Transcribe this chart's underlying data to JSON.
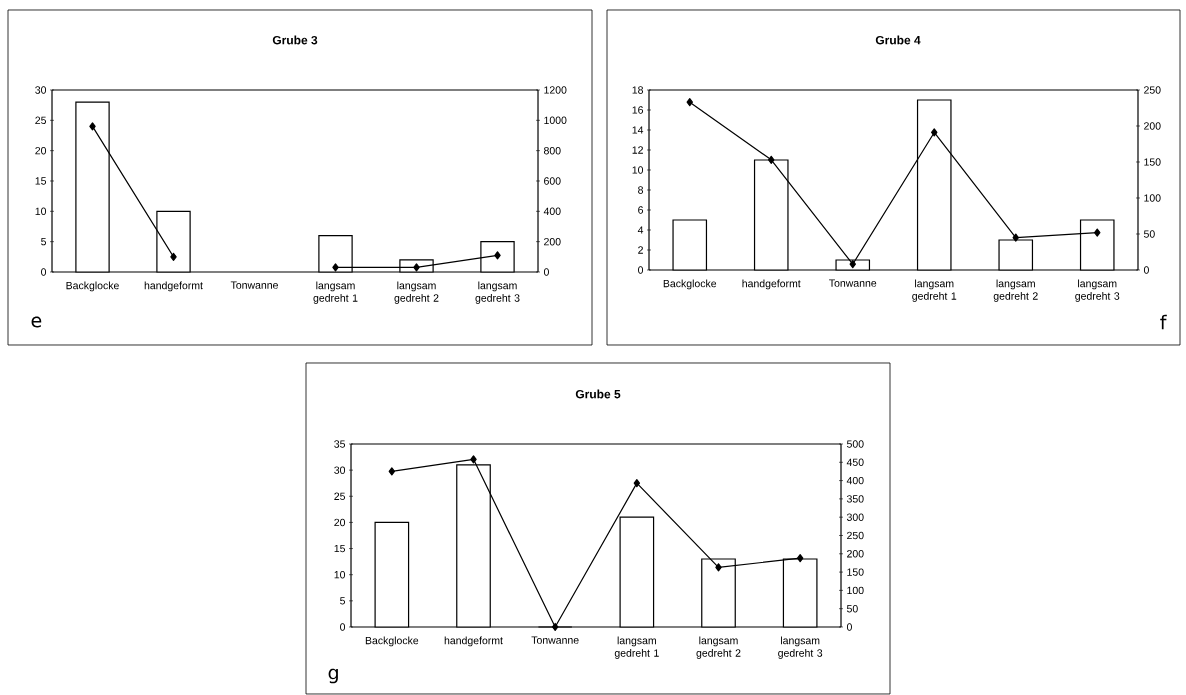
{
  "chart_data": [
    {
      "type": "bar",
      "title": "Grube 3",
      "categories": [
        "Backglocke",
        "handgeformt",
        "Tonwanne",
        "langsam gedreht 1",
        "langsam gedreht 2",
        "langsam gedreht 3"
      ],
      "series": [
        {
          "color": "#ffffff",
          "values": [
            28,
            10,
            null,
            6,
            2,
            5
          ]
        },
        {
          "type": "line",
          "axis": "y2",
          "color": "#000000",
          "marker": "diamond",
          "values": [
            960,
            100,
            null,
            30,
            30,
            110
          ]
        }
      ],
      "ylim": [
        0,
        30
      ],
      "yticks": [
        0,
        5,
        10,
        15,
        20,
        25,
        30
      ],
      "y2lim": [
        0,
        1200
      ],
      "y2ticks": [
        0,
        200,
        400,
        600,
        800,
        1000,
        1200
      ],
      "grid": false,
      "annotations": [
        "e"
      ]
    },
    {
      "type": "bar",
      "title": "Grube 4",
      "categories": [
        "Backglocke",
        "handgeformt",
        "Tonwanne",
        "langsam gedreht 1",
        "langsam gedreht 2",
        "langsam gedreht 3"
      ],
      "series": [
        {
          "color": "#ffffff",
          "values": [
            5,
            11,
            1,
            17,
            3,
            5
          ]
        },
        {
          "type": "line",
          "axis": "y2",
          "color": "#000000",
          "marker": "diamond",
          "values": [
            233,
            153,
            8,
            191,
            45,
            52
          ]
        }
      ],
      "ylim": [
        0,
        18
      ],
      "yticks": [
        0,
        2,
        4,
        6,
        8,
        10,
        12,
        14,
        16,
        18
      ],
      "y2lim": [
        0,
        250
      ],
      "y2ticks": [
        0,
        50,
        100,
        150,
        200,
        250
      ],
      "grid": false,
      "annotations": [
        "f"
      ]
    },
    {
      "type": "bar",
      "title": "Grube 5",
      "categories": [
        "Backglocke",
        "handgeformt",
        "Tonwanne",
        "langsam gedreht 1",
        "langsam gedreht 2",
        "langsam gedreht 3"
      ],
      "series": [
        {
          "color": "#ffffff",
          "values": [
            20,
            31,
            0,
            21,
            13,
            13
          ]
        },
        {
          "type": "line",
          "axis": "y2",
          "color": "#000000",
          "marker": "diamond",
          "values": [
            425,
            458,
            0,
            393,
            163,
            188
          ]
        }
      ],
      "ylim": [
        0,
        35
      ],
      "yticks": [
        0,
        5,
        10,
        15,
        20,
        25,
        30,
        35
      ],
      "y2lim": [
        0,
        500
      ],
      "y2ticks": [
        0,
        50,
        100,
        150,
        200,
        250,
        300,
        350,
        400,
        450,
        500
      ],
      "grid": false,
      "annotations": [
        "g"
      ]
    }
  ]
}
